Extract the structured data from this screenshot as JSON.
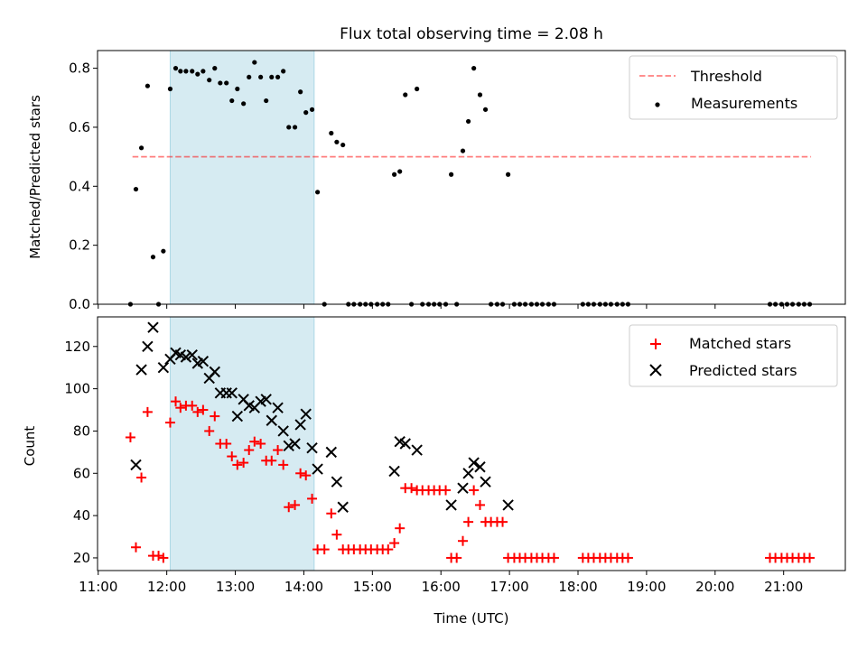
{
  "figure": {
    "title": "Flux total observing time = 2.08 h",
    "xlabel": "Time (UTC)",
    "x_ticks": [
      "11:00",
      "12:00",
      "13:00",
      "14:00",
      "15:00",
      "16:00",
      "17:00",
      "18:00",
      "19:00",
      "20:00",
      "21:00"
    ],
    "shaded_band_hours": [
      12.05,
      14.15
    ],
    "colors": {
      "band": "#add8e6",
      "threshold": "#ff0000",
      "matched": "#ff0000",
      "measurement": "#000000",
      "predicted": "#000000"
    }
  },
  "chart_data": [
    {
      "type": "scatter",
      "ylabel": "Matched/Predicted stars",
      "ylim": [
        0,
        0.86
      ],
      "xlim_hours": [
        10.99,
        21.9
      ],
      "y_ticks": [
        "0.0",
        "0.2",
        "0.4",
        "0.6",
        "0.8"
      ],
      "legend": {
        "placement": "top-right",
        "entries": [
          "Threshold",
          "Measurements"
        ]
      },
      "threshold": {
        "name": "Threshold",
        "value": 0.5,
        "x_range_hours": [
          11.5,
          21.4
        ],
        "style": "dashed"
      },
      "series": [
        {
          "name": "Measurements",
          "points": [
            [
              11.47,
              0.0
            ],
            [
              11.55,
              0.39
            ],
            [
              11.63,
              0.53
            ],
            [
              11.72,
              0.74
            ],
            [
              11.8,
              0.16
            ],
            [
              11.88,
              0.0
            ],
            [
              11.95,
              0.18
            ],
            [
              12.05,
              0.73
            ],
            [
              12.13,
              0.8
            ],
            [
              12.2,
              0.79
            ],
            [
              12.28,
              0.79
            ],
            [
              12.37,
              0.79
            ],
            [
              12.45,
              0.78
            ],
            [
              12.53,
              0.79
            ],
            [
              12.62,
              0.76
            ],
            [
              12.7,
              0.8
            ],
            [
              12.78,
              0.75
            ],
            [
              12.87,
              0.75
            ],
            [
              12.95,
              0.69
            ],
            [
              13.03,
              0.73
            ],
            [
              13.12,
              0.68
            ],
            [
              13.2,
              0.77
            ],
            [
              13.28,
              0.82
            ],
            [
              13.37,
              0.77
            ],
            [
              13.45,
              0.69
            ],
            [
              13.53,
              0.77
            ],
            [
              13.62,
              0.77
            ],
            [
              13.7,
              0.79
            ],
            [
              13.78,
              0.6
            ],
            [
              13.87,
              0.6
            ],
            [
              13.95,
              0.72
            ],
            [
              14.03,
              0.65
            ],
            [
              14.12,
              0.66
            ],
            [
              14.2,
              0.38
            ],
            [
              14.3,
              0.0
            ],
            [
              14.4,
              0.58
            ],
            [
              14.48,
              0.55
            ],
            [
              14.57,
              0.54
            ],
            [
              14.65,
              0.0
            ],
            [
              14.73,
              0.0
            ],
            [
              14.82,
              0.0
            ],
            [
              14.9,
              0.0
            ],
            [
              14.98,
              0.0
            ],
            [
              15.07,
              0.0
            ],
            [
              15.15,
              0.0
            ],
            [
              15.23,
              0.0
            ],
            [
              15.32,
              0.44
            ],
            [
              15.4,
              0.45
            ],
            [
              15.48,
              0.71
            ],
            [
              15.57,
              0.0
            ],
            [
              15.65,
              0.73
            ],
            [
              15.73,
              0.0
            ],
            [
              15.82,
              0.0
            ],
            [
              15.9,
              0.0
            ],
            [
              15.98,
              0.0
            ],
            [
              16.07,
              0.0
            ],
            [
              16.15,
              0.44
            ],
            [
              16.23,
              0.0
            ],
            [
              16.32,
              0.52
            ],
            [
              16.4,
              0.62
            ],
            [
              16.48,
              0.8
            ],
            [
              16.57,
              0.71
            ],
            [
              16.65,
              0.66
            ],
            [
              16.73,
              0.0
            ],
            [
              16.82,
              0.0
            ],
            [
              16.9,
              0.0
            ],
            [
              16.98,
              0.44
            ],
            [
              17.07,
              0.0
            ],
            [
              17.15,
              0.0
            ],
            [
              17.23,
              0.0
            ],
            [
              17.32,
              0.0
            ],
            [
              17.4,
              0.0
            ],
            [
              17.48,
              0.0
            ],
            [
              17.57,
              0.0
            ],
            [
              17.65,
              0.0
            ],
            [
              18.07,
              0.0
            ],
            [
              18.15,
              0.0
            ],
            [
              18.23,
              0.0
            ],
            [
              18.32,
              0.0
            ],
            [
              18.4,
              0.0
            ],
            [
              18.48,
              0.0
            ],
            [
              18.57,
              0.0
            ],
            [
              18.65,
              0.0
            ],
            [
              18.73,
              0.0
            ],
            [
              20.8,
              0.0
            ],
            [
              20.88,
              0.0
            ],
            [
              20.97,
              0.0
            ],
            [
              21.05,
              0.0
            ],
            [
              21.13,
              0.0
            ],
            [
              21.22,
              0.0
            ],
            [
              21.3,
              0.0
            ],
            [
              21.38,
              0.0
            ]
          ]
        }
      ]
    },
    {
      "type": "scatter",
      "ylabel": "Count",
      "ylim": [
        14,
        134
      ],
      "xlim_hours": [
        10.99,
        21.9
      ],
      "y_ticks": [
        "20",
        "40",
        "60",
        "80",
        "100",
        "120"
      ],
      "legend": {
        "placement": "top-right",
        "entries": [
          "Matched stars",
          "Predicted stars"
        ]
      },
      "series": [
        {
          "name": "Matched stars",
          "marker": "+",
          "points": [
            [
              11.47,
              77
            ],
            [
              11.55,
              25
            ],
            [
              11.63,
              58
            ],
            [
              11.72,
              89
            ],
            [
              11.8,
              21
            ],
            [
              11.88,
              21
            ],
            [
              11.95,
              20
            ],
            [
              12.05,
              84
            ],
            [
              12.13,
              94
            ],
            [
              12.2,
              91
            ],
            [
              12.28,
              92
            ],
            [
              12.37,
              92
            ],
            [
              12.45,
              89
            ],
            [
              12.53,
              90
            ],
            [
              12.62,
              80
            ],
            [
              12.7,
              87
            ],
            [
              12.78,
              74
            ],
            [
              12.87,
              74
            ],
            [
              12.95,
              68
            ],
            [
              13.03,
              64
            ],
            [
              13.12,
              65
            ],
            [
              13.2,
              71
            ],
            [
              13.28,
              75
            ],
            [
              13.37,
              74
            ],
            [
              13.45,
              66
            ],
            [
              13.53,
              66
            ],
            [
              13.62,
              71
            ],
            [
              13.7,
              64
            ],
            [
              13.78,
              44
            ],
            [
              13.87,
              45
            ],
            [
              13.95,
              60
            ],
            [
              14.03,
              59
            ],
            [
              14.12,
              48
            ],
            [
              14.2,
              24
            ],
            [
              14.3,
              24
            ],
            [
              14.4,
              41
            ],
            [
              14.48,
              31
            ],
            [
              14.57,
              24
            ],
            [
              14.65,
              24
            ],
            [
              14.73,
              24
            ],
            [
              14.82,
              24
            ],
            [
              14.9,
              24
            ],
            [
              14.98,
              24
            ],
            [
              15.07,
              24
            ],
            [
              15.15,
              24
            ],
            [
              15.23,
              24
            ],
            [
              15.32,
              27
            ],
            [
              15.4,
              34
            ],
            [
              15.48,
              53
            ],
            [
              15.57,
              53
            ],
            [
              15.65,
              52
            ],
            [
              15.73,
              52
            ],
            [
              15.82,
              52
            ],
            [
              15.9,
              52
            ],
            [
              15.98,
              52
            ],
            [
              16.07,
              52
            ],
            [
              16.15,
              20
            ],
            [
              16.23,
              20
            ],
            [
              16.32,
              28
            ],
            [
              16.4,
              37
            ],
            [
              16.48,
              52
            ],
            [
              16.57,
              45
            ],
            [
              16.65,
              37
            ],
            [
              16.73,
              37
            ],
            [
              16.82,
              37
            ],
            [
              16.9,
              37
            ],
            [
              16.98,
              20
            ],
            [
              17.07,
              20
            ],
            [
              17.15,
              20
            ],
            [
              17.23,
              20
            ],
            [
              17.32,
              20
            ],
            [
              17.4,
              20
            ],
            [
              17.48,
              20
            ],
            [
              17.57,
              20
            ],
            [
              17.65,
              20
            ],
            [
              18.07,
              20
            ],
            [
              18.15,
              20
            ],
            [
              18.23,
              20
            ],
            [
              18.32,
              20
            ],
            [
              18.4,
              20
            ],
            [
              18.48,
              20
            ],
            [
              18.57,
              20
            ],
            [
              18.65,
              20
            ],
            [
              18.73,
              20
            ],
            [
              20.8,
              20
            ],
            [
              20.88,
              20
            ],
            [
              20.97,
              20
            ],
            [
              21.05,
              20
            ],
            [
              21.13,
              20
            ],
            [
              21.22,
              20
            ],
            [
              21.3,
              20
            ],
            [
              21.38,
              20
            ]
          ]
        },
        {
          "name": "Predicted stars",
          "marker": "x",
          "points": [
            [
              11.55,
              64
            ],
            [
              11.63,
              109
            ],
            [
              11.72,
              120
            ],
            [
              11.8,
              129
            ],
            [
              11.95,
              110
            ],
            [
              12.05,
              114
            ],
            [
              12.13,
              117
            ],
            [
              12.2,
              116
            ],
            [
              12.28,
              115
            ],
            [
              12.37,
              116
            ],
            [
              12.45,
              112
            ],
            [
              12.53,
              113
            ],
            [
              12.62,
              105
            ],
            [
              12.7,
              108
            ],
            [
              12.78,
              98
            ],
            [
              12.87,
              98
            ],
            [
              12.95,
              98
            ],
            [
              13.03,
              87
            ],
            [
              13.12,
              95
            ],
            [
              13.2,
              92
            ],
            [
              13.28,
              91
            ],
            [
              13.37,
              94
            ],
            [
              13.45,
              95
            ],
            [
              13.53,
              85
            ],
            [
              13.62,
              91
            ],
            [
              13.7,
              80
            ],
            [
              13.78,
              73
            ],
            [
              13.87,
              74
            ],
            [
              13.95,
              83
            ],
            [
              14.03,
              88
            ],
            [
              14.12,
              72
            ],
            [
              14.2,
              62
            ],
            [
              14.4,
              70
            ],
            [
              14.48,
              56
            ],
            [
              14.57,
              44
            ],
            [
              15.32,
              61
            ],
            [
              15.4,
              75
            ],
            [
              15.48,
              74
            ],
            [
              15.65,
              71
            ],
            [
              16.15,
              45
            ],
            [
              16.32,
              53
            ],
            [
              16.4,
              60
            ],
            [
              16.48,
              65
            ],
            [
              16.57,
              63
            ],
            [
              16.65,
              56
            ],
            [
              16.98,
              45
            ]
          ]
        }
      ]
    }
  ]
}
